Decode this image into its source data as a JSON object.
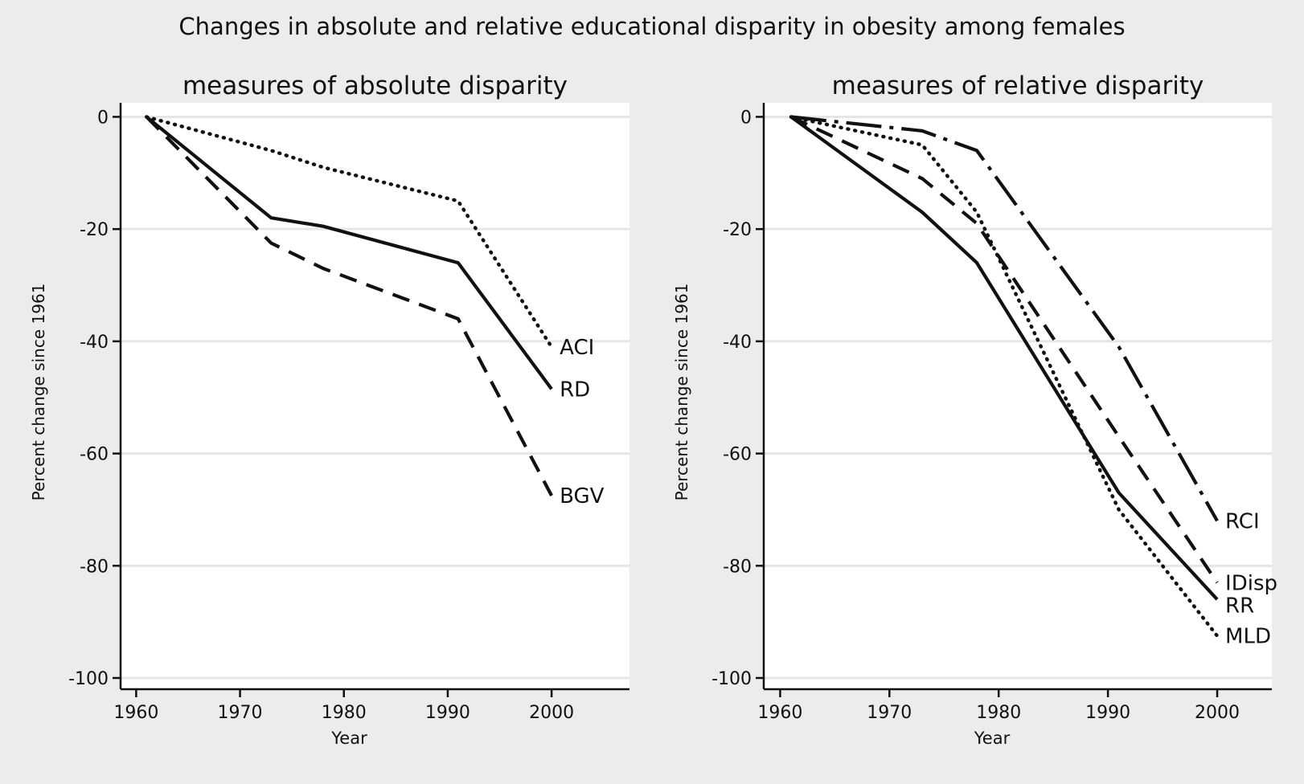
{
  "title": "Changes in absolute and relative educational disparity in obesity among females",
  "colors": {
    "background": "#ececec",
    "plot_bg": "#ffffff",
    "grid": "#e6e6e6",
    "line": "#111111"
  },
  "chart_data": [
    {
      "type": "line",
      "title": "measures of absolute disparity",
      "xlabel": "Year",
      "ylabel": "Percent change since 1961",
      "xlim": [
        1958.5,
        2007.5
      ],
      "ylim": [
        -102,
        2.5
      ],
      "xticks": [
        1960,
        1970,
        1980,
        1990,
        2000
      ],
      "yticks": [
        0,
        -20,
        -40,
        -60,
        -80,
        -100
      ],
      "grid": true,
      "legend": "labels at line ends",
      "series": [
        {
          "name": "ACI",
          "style": "dotted",
          "x": [
            1961,
            1973,
            1978,
            1991,
            2000
          ],
          "y": [
            0,
            -6,
            -9,
            -15,
            -41
          ]
        },
        {
          "name": "RD",
          "style": "solid",
          "x": [
            1961,
            1973,
            1978,
            1991,
            2000
          ],
          "y": [
            0,
            -18,
            -19.5,
            -26,
            -48.5
          ]
        },
        {
          "name": "BGV",
          "style": "dashed",
          "x": [
            1961,
            1973,
            1978,
            1991,
            2000
          ],
          "y": [
            0,
            -22.5,
            -27,
            -36,
            -67.5
          ]
        }
      ]
    },
    {
      "type": "line",
      "title": "measures of relative disparity",
      "xlabel": "Year",
      "ylabel": "Percent change since 1961",
      "xlim": [
        1958.5,
        2005
      ],
      "ylim": [
        -102,
        2.5
      ],
      "xticks": [
        1960,
        1970,
        1980,
        1990,
        2000
      ],
      "yticks": [
        0,
        -20,
        -40,
        -60,
        -80,
        -100
      ],
      "grid": true,
      "legend": "labels at line ends",
      "series": [
        {
          "name": "RCI",
          "style": "longdash-dot",
          "x": [
            1961,
            1973,
            1978,
            1991,
            2000
          ],
          "y": [
            0,
            -2.5,
            -6,
            -41,
            -72
          ]
        },
        {
          "name": "IDisp",
          "style": "dashed",
          "x": [
            1961,
            1973,
            1978,
            1991,
            2000
          ],
          "y": [
            0,
            -11,
            -19,
            -57,
            -83
          ]
        },
        {
          "name": "RR",
          "style": "solid",
          "x": [
            1961,
            1973,
            1978,
            1991,
            2000
          ],
          "y": [
            0,
            -17,
            -26,
            -67,
            -86
          ]
        },
        {
          "name": "MLD",
          "style": "dotted",
          "x": [
            1961,
            1973,
            1978,
            1991,
            2000
          ],
          "y": [
            0,
            -5,
            -17,
            -70,
            -92.5
          ]
        }
      ]
    }
  ]
}
